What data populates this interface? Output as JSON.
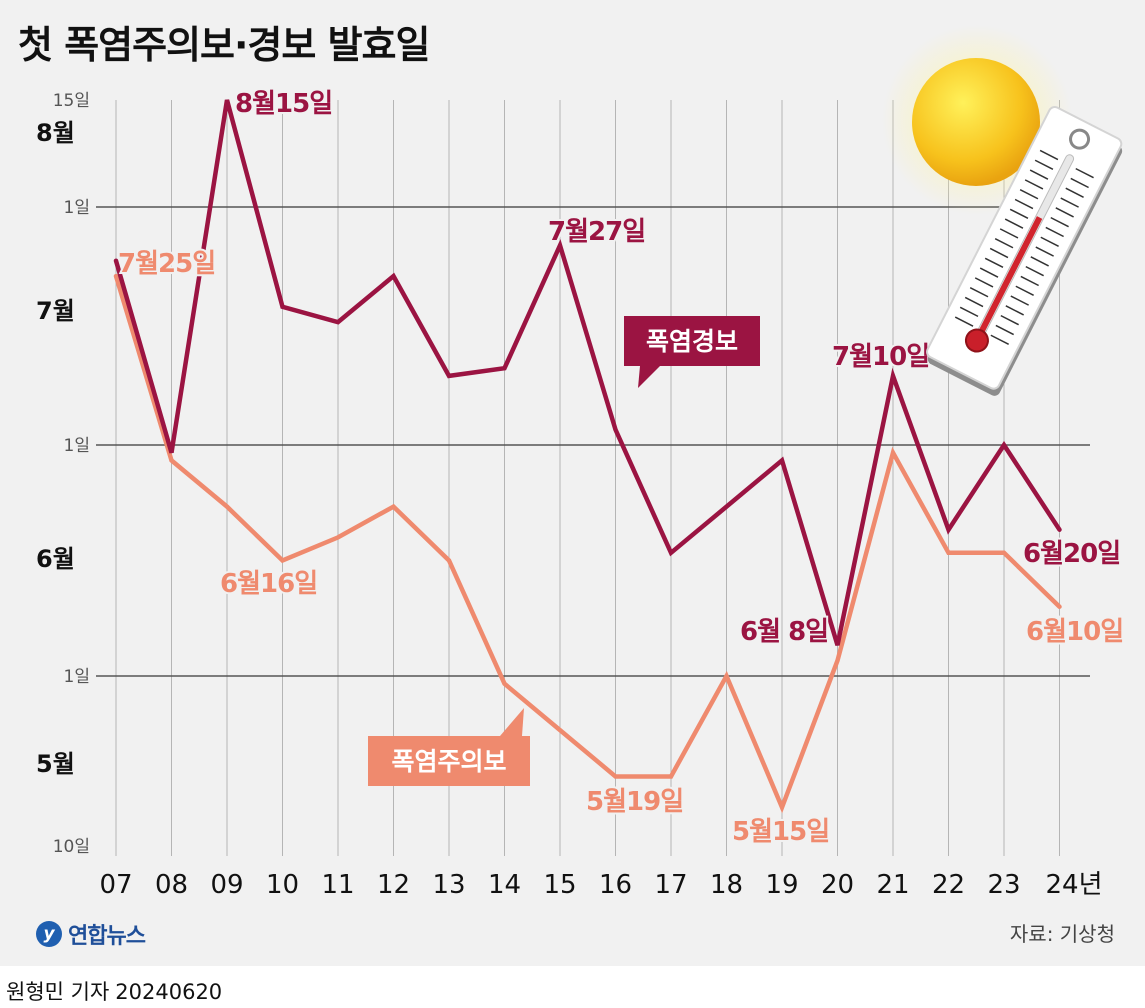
{
  "title": "첫 폭염주의보·경보 발효일",
  "source": "자료: 기상청",
  "logo": {
    "text": "연합뉴스",
    "icon": "yonhap-logo-icon"
  },
  "credit": {
    "author": "원형민 기자",
    "date": "20240620"
  },
  "colors": {
    "warning": "#9b1442",
    "advisory": "#ef8a6e",
    "grid": "#b5b5b5",
    "axis_major": "#555555",
    "background": "#f1f1f1"
  },
  "decoration": {
    "sun": "sun-icon",
    "thermometer": "thermometer-icon"
  },
  "chart_data": {
    "type": "line",
    "title": "첫 폭염주의보·경보 발효일",
    "categories": [
      "07",
      "08",
      "09",
      "10",
      "11",
      "12",
      "13",
      "14",
      "15",
      "16",
      "17",
      "18",
      "19",
      "20",
      "21",
      "22",
      "23",
      "24년"
    ],
    "y_tick_labels": [
      "15일",
      "1일",
      "1일",
      "1일",
      "10일"
    ],
    "month_labels": [
      "8월",
      "7월",
      "6월",
      "5월"
    ],
    "ylim": [
      "5월10일",
      "8월15일"
    ],
    "grid": true,
    "series": [
      {
        "name": "폭염경보",
        "color": "#9b1442",
        "values": [
          "7월25일",
          "6월30일",
          "8월15일",
          "7월19일",
          "7월17일",
          "7월23일",
          "7월10일",
          "7월11일",
          "7월27일",
          "7월3일",
          "6월17일",
          "6월23일",
          "6월29일",
          "6월5일",
          "7월10일",
          "6월20일",
          "7월1일",
          "6월20일"
        ]
      },
      {
        "name": "폭염주의보",
        "color": "#ef8a6e",
        "values": [
          "7월23일",
          "6월29일",
          "6월23일",
          "6월16일",
          "6월19일",
          "6월23일",
          "6월16일",
          "5월31일",
          "5월25일",
          "5월19일",
          "5월19일",
          "6월1일",
          "5월15일",
          "6월3일",
          "6월30일",
          "6월17일",
          "6월17일",
          "6월10일"
        ]
      }
    ],
    "annotations": [
      "8월15일",
      "7월25일",
      "7월27일",
      "6월16일",
      "7월10일",
      "6월20일",
      "6월 8일",
      "6월10일",
      "5월19일",
      "5월15일"
    ]
  }
}
